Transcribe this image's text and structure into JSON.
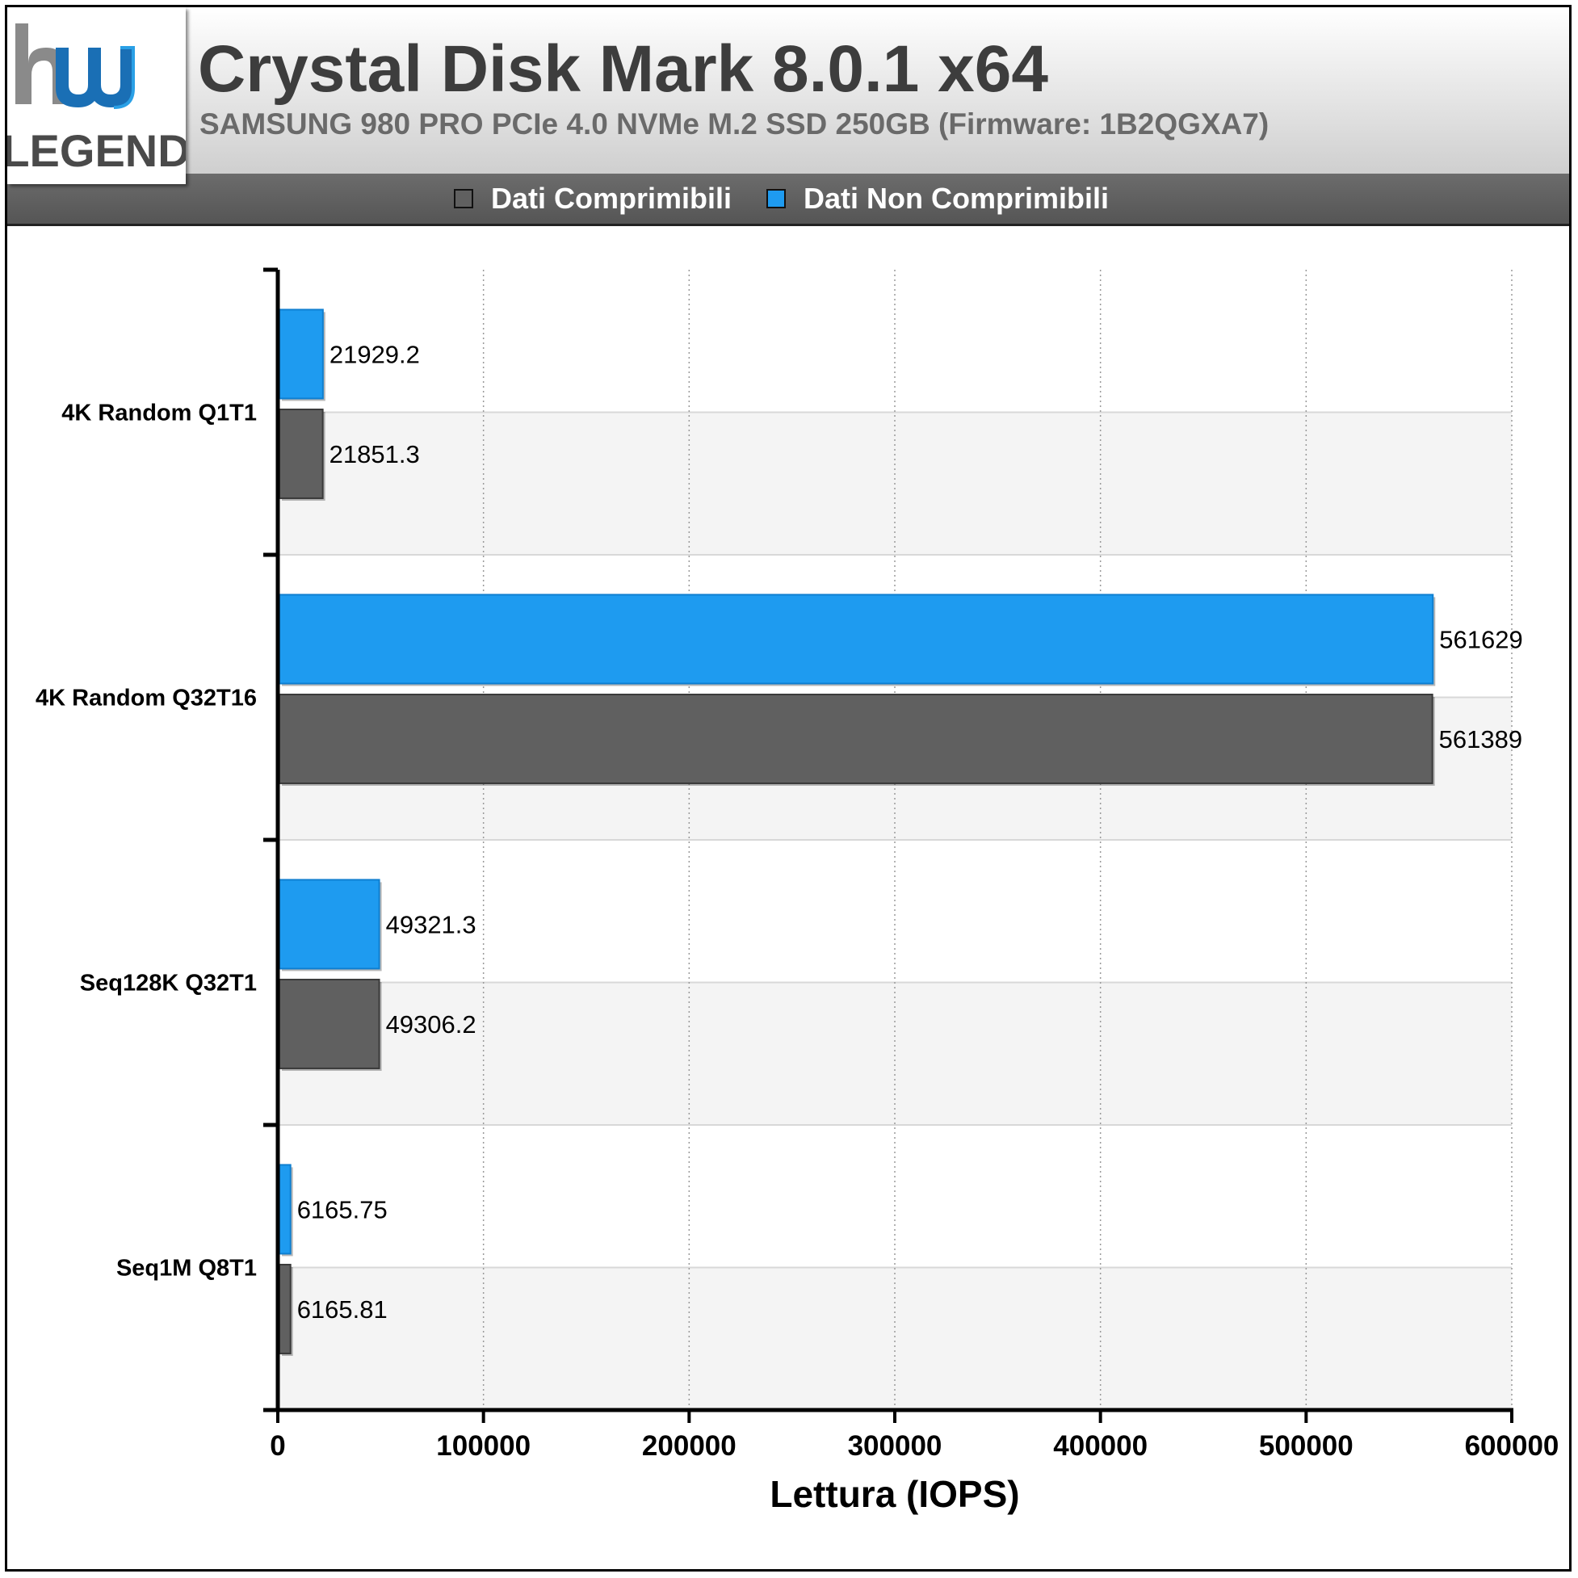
{
  "header": {
    "title": "Crystal Disk Mark 8.0.1 x64",
    "subtitle": "SAMSUNG 980 PRO PCIe 4.0 NVMe M.2 SSD 250GB (Firmware: 1B2QGXA7)",
    "logo_text": "LEGEND"
  },
  "legend": {
    "items": [
      {
        "label": "Dati Comprimibili",
        "color": "#606060"
      },
      {
        "label": "Dati Non Comprimibili",
        "color": "#1e9bf0"
      }
    ]
  },
  "chart_data": {
    "type": "bar",
    "orientation": "horizontal",
    "title": "Crystal Disk Mark 8.0.1 x64",
    "subtitle": "SAMSUNG 980 PRO PCIe 4.0 NVMe M.2 SSD 250GB (Firmware: 1B2QGXA7)",
    "categories": [
      "4K Random Q1T1",
      "4K Random Q32T16",
      "Seq128K Q32T1",
      "Seq1M Q8T1"
    ],
    "series": [
      {
        "name": "Dati Non Comprimibili",
        "color": "#1e9bf0",
        "values": [
          21929.2,
          561629,
          49321.3,
          6165.75
        ],
        "labels": [
          "21929.2",
          "561629",
          "49321.3",
          "6165.75"
        ]
      },
      {
        "name": "Dati Comprimibili",
        "color": "#606060",
        "values": [
          21851.3,
          561389,
          49306.2,
          6165.81
        ],
        "labels": [
          "21851.3",
          "561389",
          "49306.2",
          "6165.81"
        ]
      }
    ],
    "xlabel": "Lettura (IOPS)",
    "xlim": [
      0,
      600000
    ],
    "xticks": [
      0,
      100000,
      200000,
      300000,
      400000,
      500000,
      600000
    ],
    "grid": true,
    "legend_position": "top"
  }
}
